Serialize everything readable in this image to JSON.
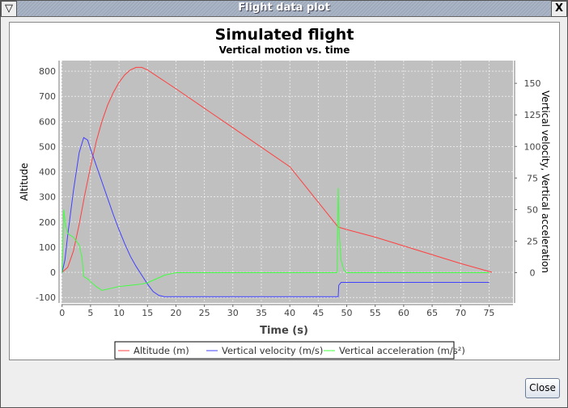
{
  "window": {
    "title": "Flight data plot",
    "menu_icon": "triangle-down-icon",
    "close_icon": "x-icon",
    "close_glyph": "X",
    "menu_glyph": "▽"
  },
  "button": {
    "close": "Close"
  },
  "chart_data": {
    "type": "line",
    "title": "Simulated flight",
    "subtitle": "Vertical motion vs. time",
    "xlabel": "Time (s)",
    "ylabel": "Altitude",
    "y2label": "Vertical velocity, Vertical acceleration",
    "xlim": [
      -0.1,
      79.2
    ],
    "ylim": [
      -122,
      842
    ],
    "y2lim": [
      -24,
      168
    ],
    "xticks": [
      0,
      5,
      10,
      15,
      20,
      25,
      30,
      35,
      40,
      45,
      50,
      55,
      60,
      65,
      70,
      75
    ],
    "yticks": [
      -100,
      0,
      100,
      200,
      300,
      400,
      500,
      600,
      700,
      800
    ],
    "y2ticks": [
      0,
      25,
      50,
      75,
      100,
      125,
      150
    ],
    "grid": true,
    "legend": "bottom",
    "background": "#c0c0c0",
    "series": [
      {
        "name": "Altitude (m)",
        "axis": "left",
        "color": "#ff4040",
        "x": [
          0,
          1,
          2,
          3,
          4,
          5,
          6,
          7,
          8,
          9,
          10,
          11,
          12,
          13,
          14,
          15,
          16,
          20,
          30,
          40,
          48.5,
          50,
          55,
          60,
          65,
          70,
          75.5
        ],
        "y": [
          0,
          20,
          85,
          190,
          310,
          420,
          520,
          600,
          665,
          715,
          755,
          785,
          805,
          815,
          815,
          805,
          790,
          730,
          575,
          420,
          180,
          170,
          140,
          105,
          70,
          35,
          0
        ]
      },
      {
        "name": "Vertical velocity (m/s)",
        "axis": "right",
        "color": "#4040ff",
        "x": [
          0,
          0.5,
          1,
          2,
          3,
          3.8,
          4.5,
          5,
          6,
          7,
          8,
          9,
          10,
          11,
          12,
          13,
          14,
          15,
          16,
          17,
          18,
          20,
          48.5,
          48.6,
          49,
          75
        ],
        "y": [
          0,
          10,
          30,
          65,
          95,
          107,
          105,
          98,
          85,
          72,
          59,
          46,
          34,
          23,
          13,
          5,
          -2,
          -9,
          -15,
          -18,
          -19,
          -19,
          -19,
          -10,
          -7.7,
          -7.7
        ]
      },
      {
        "name": "Vertical acceleration (m/s²)",
        "axis": "right",
        "color": "#40ff40",
        "x": [
          0,
          0.3,
          0.6,
          1,
          2,
          3,
          3.5,
          3.8,
          4.5,
          5,
          6,
          7,
          8,
          10,
          12,
          14,
          15,
          16,
          17,
          18,
          19,
          20,
          48.3,
          48.5,
          48.7,
          49,
          49.5,
          50,
          75
        ],
        "y": [
          0,
          50,
          38,
          31,
          28,
          22,
          12,
          -3,
          -5,
          -7,
          -11,
          -14,
          -13,
          -11,
          -10,
          -9,
          -8,
          -6,
          -4,
          -2,
          -1,
          0,
          0,
          67,
          30,
          10,
          2,
          0,
          0
        ]
      }
    ]
  }
}
